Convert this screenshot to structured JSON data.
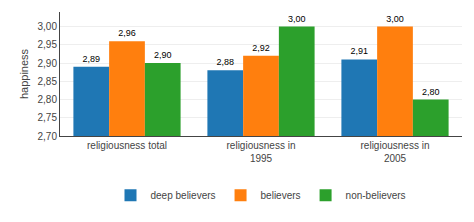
{
  "chart_data": {
    "type": "bar",
    "categories": [
      "religiousness total",
      "religiousness in\n1995",
      "religiousness in\n2005"
    ],
    "series": [
      {
        "name": "deep believers",
        "values": [
          2.89,
          2.88,
          2.91
        ],
        "value_labels": [
          "2,89",
          "2,88",
          "2,91"
        ]
      },
      {
        "name": "believers",
        "values": [
          2.96,
          2.92,
          3.0
        ],
        "value_labels": [
          "2,96",
          "2,92",
          "3,00"
        ]
      },
      {
        "name": "non-believers",
        "values": [
          2.9,
          3.0,
          2.8
        ],
        "value_labels": [
          "2,90",
          "3,00",
          "2,80"
        ]
      }
    ],
    "ylabel": "happiness",
    "ylim": [
      2.7,
      3.04
    ],
    "yticks": [
      {
        "value": 2.7,
        "label": "2,70"
      },
      {
        "value": 2.75,
        "label": "2,75"
      },
      {
        "value": 2.8,
        "label": "2,80"
      },
      {
        "value": 2.85,
        "label": "2,85"
      },
      {
        "value": 2.9,
        "label": "2,90"
      },
      {
        "value": 2.95,
        "label": "2,95"
      },
      {
        "value": 3.0,
        "label": "3,00"
      }
    ],
    "grid": true,
    "data_labels": true,
    "legend": "bottom"
  }
}
